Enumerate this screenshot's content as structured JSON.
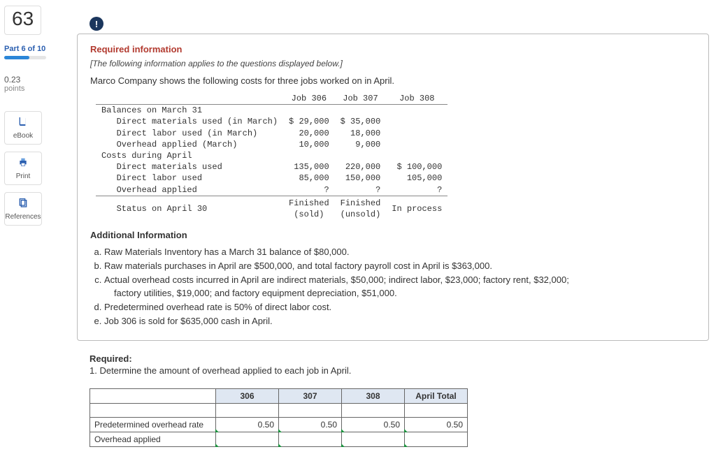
{
  "sidebar": {
    "question_number": "63",
    "part_label": "Part 6 of 10",
    "progress_pct": 60,
    "points_value": "0.23",
    "points_label": "points",
    "ebook_label": "eBook",
    "print_label": "Print",
    "references_label": "References"
  },
  "alert_glyph": "!",
  "required_info_heading": "Required information",
  "applies_text": "[The following information applies to the questions displayed below.]",
  "intro_text": "Marco Company shows the following costs for three jobs worked on in April.",
  "cost_table": {
    "headers": [
      "",
      "Job 306",
      "Job 307",
      "Job 308"
    ],
    "rows": [
      {
        "label": "Balances on March 31",
        "v": [
          "",
          "",
          ""
        ],
        "indent": 0
      },
      {
        "label": "Direct materials used (in March)",
        "v": [
          "$ 29,000",
          "$ 35,000",
          ""
        ],
        "indent": 1
      },
      {
        "label": "Direct labor used (in March)",
        "v": [
          "20,000",
          "18,000",
          ""
        ],
        "indent": 1
      },
      {
        "label": "Overhead applied (March)",
        "v": [
          "10,000",
          "9,000",
          ""
        ],
        "indent": 1
      },
      {
        "label": "Costs during April",
        "v": [
          "",
          "",
          ""
        ],
        "indent": 0
      },
      {
        "label": "Direct materials used",
        "v": [
          "135,000",
          "220,000",
          "$ 100,000"
        ],
        "indent": 1
      },
      {
        "label": "Direct labor used",
        "v": [
          "85,000",
          "150,000",
          "105,000"
        ],
        "indent": 1
      },
      {
        "label": "Overhead applied",
        "v": [
          "?",
          "?",
          "?"
        ],
        "indent": 1
      }
    ],
    "status_label": "Status on April 30",
    "status": [
      "Finished\n(sold)",
      "Finished\n(unsold)",
      "In process"
    ]
  },
  "additional_heading": "Additional Information",
  "info_items": {
    "a": "Raw Materials Inventory has a March 31 balance of $80,000.",
    "b": "Raw materials purchases in April are $500,000, and total factory payroll cost in April is $363,000.",
    "c": "Actual overhead costs incurred in April are indirect materials, $50,000; indirect labor, $23,000; factory rent, $32,000;",
    "c2": "factory utilities, $19,000; and factory equipment depreciation, $51,000.",
    "d": "Predetermined overhead rate is 50% of direct labor cost.",
    "e": "Job 306 is sold for $635,000 cash in April."
  },
  "required_label": "Required:",
  "required_q": "1. Determine the amount of overhead applied to each job in April.",
  "answer_table": {
    "col_headers": [
      "306",
      "307",
      "308",
      "April Total"
    ],
    "rows": [
      {
        "label": "",
        "vals": [
          "",
          "",
          "",
          ""
        ],
        "editable": [
          false,
          false,
          false,
          false
        ]
      },
      {
        "label": "Predetermined overhead rate",
        "vals": [
          "0.50",
          "0.50",
          "0.50",
          "0.50"
        ],
        "editable": [
          true,
          true,
          true,
          true
        ]
      },
      {
        "label": "Overhead applied",
        "vals": [
          "",
          "",
          "",
          ""
        ],
        "editable": [
          true,
          true,
          true,
          true
        ]
      }
    ]
  }
}
